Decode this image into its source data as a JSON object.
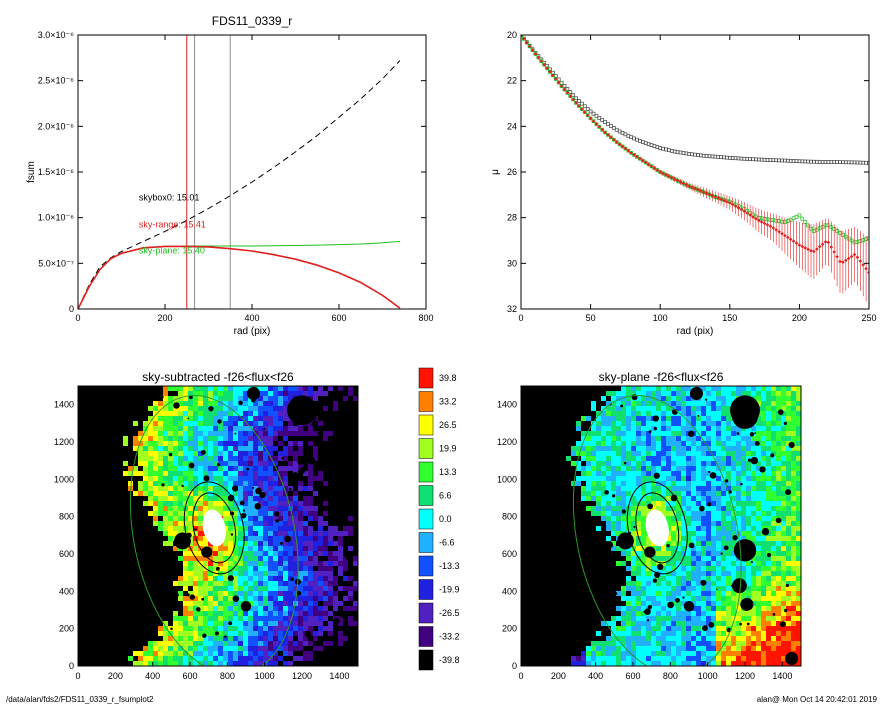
{
  "footer": {
    "path": "/data/alan/fds2/FDS11_0339_r_fsumplot2",
    "stamp": "alan@  Mon Oct 14 20:42:01 2019"
  },
  "chart_data": [
    {
      "type": "line",
      "title": "FDS11_0339_r",
      "xlabel": "rad (pix)",
      "ylabel": "fsum",
      "xlim": [
        0,
        800
      ],
      "ylim": [
        0,
        3e-06
      ],
      "x_ticks": [
        "0",
        "200",
        "400",
        "600",
        "800"
      ],
      "y_ticks": [
        "0",
        "5.0×10⁻⁷",
        "1.0×10⁻⁶",
        "1.5×10⁻⁶",
        "2.0×10⁻⁶",
        "2.5×10⁻⁶",
        "3.0×10⁻⁶"
      ],
      "y_tick_values": [
        0,
        5e-07,
        1e-06,
        1.5e-06,
        2e-06,
        2.5e-06,
        3e-06
      ],
      "vlines": [
        {
          "x": 250,
          "color": "#e02020"
        },
        {
          "x": 268,
          "color": "#909090"
        },
        {
          "x": 350,
          "color": "#909090"
        }
      ],
      "annotations": [
        {
          "text": "skybox0: 15.01",
          "x": 140,
          "y": 1.19e-06,
          "color": "#000000"
        },
        {
          "text": "sky-range: 15.41",
          "x": 140,
          "y": 8.9e-07,
          "color": "#e02020"
        },
        {
          "text": "sky-plane: 15.40",
          "x": 140,
          "y": 6.05e-07,
          "color": "#20c020"
        }
      ],
      "series": [
        {
          "color": "#000000",
          "dash": true,
          "x": [
            0,
            25,
            50,
            75,
            100,
            150,
            200,
            250,
            300,
            350,
            400,
            450,
            500,
            550,
            600,
            650,
            700,
            740
          ],
          "y": [
            0,
            2.6e-07,
            4.6e-07,
            5.6e-07,
            6.3e-07,
            7.4e-07,
            8.5e-07,
            9.7e-07,
            1.1e-06,
            1.24e-06,
            1.39e-06,
            1.55e-06,
            1.72e-06,
            1.9e-06,
            2.1e-06,
            2.3e-06,
            2.52e-06,
            2.72e-06
          ]
        },
        {
          "color": "#20c020",
          "x": [
            0,
            25,
            50,
            75,
            100,
            150,
            200,
            250,
            300,
            350,
            400,
            450,
            500,
            550,
            600,
            650,
            700,
            740
          ],
          "y": [
            0,
            2.4e-07,
            4.3e-07,
            5.5e-07,
            6.1e-07,
            6.7e-07,
            6.85e-07,
            6.9e-07,
            6.9e-07,
            6.9e-07,
            6.9e-07,
            6.92e-07,
            6.95e-07,
            7e-07,
            7.05e-07,
            7.12e-07,
            7.25e-07,
            7.4e-07
          ]
        },
        {
          "color": "#e02020",
          "x": [
            0,
            25,
            50,
            75,
            100,
            150,
            200,
            250,
            300,
            350,
            400,
            450,
            500,
            550,
            600,
            650,
            700,
            740
          ],
          "y": [
            0,
            2.4e-07,
            4.3e-07,
            5.5e-07,
            6.1e-07,
            6.7e-07,
            6.85e-07,
            6.85e-07,
            6.8e-07,
            6.6e-07,
            6.35e-07,
            5.95e-07,
            5.45e-07,
            4.8e-07,
            3.95e-07,
            2.9e-07,
            1.5e-07,
            1e-08
          ]
        }
      ]
    },
    {
      "type": "scatter",
      "title": "",
      "xlabel": "rad (pix)",
      "ylabel": "μ",
      "xlim": [
        0,
        250
      ],
      "ylim": [
        32,
        20
      ],
      "x_ticks": [
        "0",
        "50",
        "100",
        "150",
        "200",
        "250"
      ],
      "y_ticks": [
        "20",
        "22",
        "24",
        "26",
        "28",
        "30",
        "32"
      ],
      "series": [
        {
          "color": "#404040",
          "marker": "square-open",
          "x": [
            0,
            10,
            20,
            30,
            40,
            50,
            60,
            70,
            80,
            90,
            100,
            110,
            120,
            130,
            140,
            150,
            160,
            170,
            180,
            190,
            200,
            210,
            220,
            230,
            240,
            250
          ],
          "y": [
            20.0,
            20.75,
            21.45,
            22.15,
            22.8,
            23.35,
            23.8,
            24.2,
            24.5,
            24.75,
            24.95,
            25.1,
            25.2,
            25.28,
            25.33,
            25.38,
            25.42,
            25.45,
            25.48,
            25.5,
            25.53,
            25.55,
            25.56,
            25.57,
            25.58,
            25.6
          ]
        },
        {
          "color": "#20c020",
          "marker": "square-open",
          "x": [
            0,
            10,
            20,
            30,
            40,
            50,
            60,
            70,
            80,
            90,
            100,
            110,
            120,
            130,
            140,
            150,
            160,
            170,
            180,
            190,
            200,
            210,
            220,
            230,
            240,
            250
          ],
          "y": [
            20.0,
            20.8,
            21.55,
            22.3,
            23.0,
            23.65,
            24.25,
            24.75,
            25.2,
            25.6,
            26.0,
            26.3,
            26.6,
            26.85,
            27.1,
            27.3,
            27.6,
            28.0,
            28.1,
            28.2,
            27.9,
            28.6,
            28.3,
            28.7,
            29.1,
            28.9
          ]
        },
        {
          "color": "#e02020",
          "marker": "diamond",
          "errorbars": true,
          "x": [
            0,
            10,
            20,
            30,
            40,
            50,
            60,
            70,
            80,
            90,
            100,
            110,
            120,
            130,
            140,
            150,
            160,
            170,
            180,
            190,
            200,
            210,
            220,
            230,
            240,
            250
          ],
          "y": [
            20.0,
            20.8,
            21.55,
            22.3,
            23.0,
            23.65,
            24.25,
            24.75,
            25.2,
            25.6,
            26.0,
            26.3,
            26.6,
            26.85,
            27.1,
            27.35,
            27.7,
            28.1,
            28.4,
            28.8,
            29.2,
            29.5,
            29.0,
            30.0,
            29.6,
            30.4
          ],
          "err": [
            0.02,
            0.02,
            0.02,
            0.03,
            0.03,
            0.04,
            0.05,
            0.05,
            0.06,
            0.08,
            0.1,
            0.12,
            0.15,
            0.2,
            0.25,
            0.3,
            0.4,
            0.5,
            0.6,
            0.8,
            1.0,
            1.2,
            1.0,
            1.4,
            1.2,
            1.5
          ]
        }
      ]
    },
    {
      "type": "heatmap",
      "title": "sky-subtracted -f26<flux<f26",
      "xlim": [
        0,
        1500
      ],
      "ylim": [
        0,
        1500
      ],
      "x_ticks": [
        "0",
        "200",
        "400",
        "600",
        "800",
        "1000",
        "1200",
        "1400"
      ],
      "y_ticks": [
        "0",
        "200",
        "400",
        "600",
        "800",
        "1000",
        "1200",
        "1400"
      ],
      "galaxy_center": [
        730,
        740
      ],
      "ellipses": [
        {
          "cx": 730,
          "cy": 740,
          "rx": 110,
          "ry": 190,
          "rot": -12,
          "color": "#000000"
        },
        {
          "cx": 730,
          "cy": 740,
          "rx": 155,
          "ry": 250,
          "rot": -12,
          "color": "#000000"
        },
        {
          "cx": 730,
          "cy": 700,
          "rx": 430,
          "ry": 760,
          "rot": -12,
          "color": "#2a9a2a"
        }
      ]
    },
    {
      "type": "heatmap",
      "title": "sky-plane -f26<flux<f26",
      "xlim": [
        0,
        1500
      ],
      "ylim": [
        0,
        1500
      ],
      "x_ticks": [
        "0",
        "200",
        "400",
        "600",
        "800",
        "1000",
        "1200",
        "1400"
      ],
      "y_ticks": [
        "0",
        "200",
        "400",
        "600",
        "800",
        "1000",
        "1200",
        "1400"
      ],
      "galaxy_center": [
        730,
        740
      ],
      "ellipses": [
        {
          "cx": 730,
          "cy": 740,
          "rx": 110,
          "ry": 190,
          "rot": -12,
          "color": "#000000"
        },
        {
          "cx": 730,
          "cy": 740,
          "rx": 155,
          "ry": 250,
          "rot": -12,
          "color": "#000000"
        },
        {
          "cx": 730,
          "cy": 700,
          "rx": 430,
          "ry": 760,
          "rot": -12,
          "color": "#2a9a2a"
        }
      ]
    }
  ],
  "colorbar": {
    "labels": [
      "39.8",
      "33.2",
      "26.5",
      "19.9",
      "13.3",
      "6.6",
      "0.0",
      "-6.6",
      "-13.3",
      "-19.9",
      "-26.5",
      "-33.2",
      "-39.8"
    ],
    "colors": [
      "#ff1400",
      "#ff8000",
      "#ffff00",
      "#a0ff20",
      "#30ff30",
      "#10e070",
      "#00ffff",
      "#20b0ff",
      "#1050ff",
      "#2020e0",
      "#5020c0",
      "#400080",
      "#000000"
    ]
  }
}
